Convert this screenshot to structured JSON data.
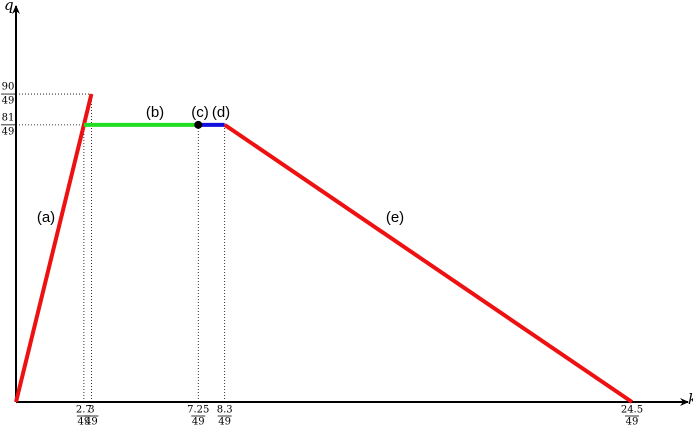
{
  "chart_data": {
    "type": "line",
    "x_label": "k",
    "y_label": "q",
    "xlim": [
      0,
      0.545
    ],
    "ylim": [
      0,
      2.35
    ],
    "xticks": [
      {
        "value": 0.055102,
        "label": {
          "numerator": "2.7",
          "denominator": "49"
        }
      },
      {
        "value": 0.061224,
        "label": {
          "numerator": "3",
          "denominator": "49"
        }
      },
      {
        "value": 0.147959,
        "label": {
          "numerator": "7.25",
          "denominator": "49"
        }
      },
      {
        "value": 0.169388,
        "label": {
          "numerator": "8.3",
          "denominator": "49"
        }
      },
      {
        "value": 0.5,
        "label": {
          "numerator": "24.5",
          "denominator": "49"
        }
      }
    ],
    "yticks": [
      {
        "value": 1.653061,
        "label": {
          "numerator": "81",
          "denominator": "49"
        }
      },
      {
        "value": 1.836735,
        "label": {
          "numerator": "90",
          "denominator": "49"
        }
      }
    ],
    "series": [
      {
        "name": "(a)",
        "color": "#ee1111",
        "x": [
          0,
          0.061224
        ],
        "values": [
          0,
          1.836735
        ]
      },
      {
        "name": "(b)",
        "color": "#22dd22",
        "x": [
          0.055102,
          0.147959
        ],
        "values": [
          1.653061,
          1.653061
        ]
      },
      {
        "name": "(c)",
        "color": "#000000",
        "x": [
          0.147959
        ],
        "values": [
          1.653061
        ]
      },
      {
        "name": "(d)",
        "color": "#1111dd",
        "x": [
          0.147959,
          0.169388
        ],
        "values": [
          1.653061,
          1.653061
        ]
      },
      {
        "name": "(e)",
        "color": "#ee1111",
        "x": [
          0.169388,
          0.5
        ],
        "values": [
          1.653061,
          0
        ]
      }
    ]
  }
}
